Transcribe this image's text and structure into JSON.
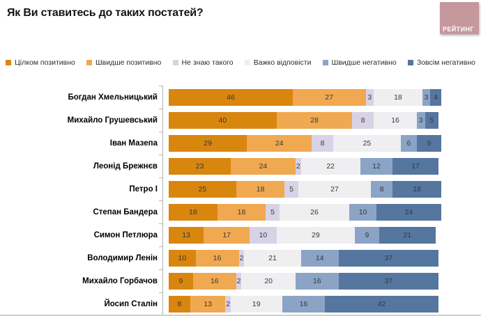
{
  "page": {
    "title": "Як Ви ставитесь до таких постатей?",
    "logo_text": "РЕЙТИНГ",
    "logo_color": "#c5989d",
    "axis_color": "#b3b3b3"
  },
  "legend": {
    "items": [
      {
        "label": "Цілком позитивно",
        "color": "#d9860f"
      },
      {
        "label": "Швидше позитивно",
        "color": "#f0a950"
      },
      {
        "label": "Не знаю такого",
        "color": "#d8d2e7"
      },
      {
        "label": "Важко відповісти",
        "color": "#efeff1"
      },
      {
        "label": "Швидше негативно",
        "color": "#8ba4c6"
      },
      {
        "label": "Зовсім негативно",
        "color": "#55769f"
      }
    ]
  },
  "chart_data": {
    "type": "bar",
    "orientation": "horizontal-stacked",
    "title": "Як Ви ставитесь до таких постатей?",
    "unit": "percent",
    "xlim": [
      0,
      101
    ],
    "value_labels": true,
    "legend_position": "top",
    "grid": false,
    "categories": [
      "Богдан Хмельницький",
      "Михайло Грушевський",
      "Іван Мазепа",
      "Леонід Брежнєв",
      "Петро І",
      "Степан Бандера",
      "Симон Петлюра",
      "Володимир Ленін",
      "Михайло Горбачов",
      "Йосип Сталін"
    ],
    "series": [
      {
        "name": "Цілком позитивно",
        "color": "#d9860f",
        "values": [
          46,
          40,
          29,
          23,
          25,
          18,
          13,
          10,
          9,
          8
        ]
      },
      {
        "name": "Швидше позитивно",
        "color": "#f0a950",
        "values": [
          27,
          28,
          24,
          24,
          18,
          18,
          17,
          16,
          16,
          13
        ]
      },
      {
        "name": "Не знаю такого",
        "color": "#d8d2e7",
        "values": [
          3,
          8,
          8,
          2,
          5,
          5,
          10,
          2,
          2,
          2
        ]
      },
      {
        "name": "Важко відповісти",
        "color": "#efeff1",
        "values": [
          18,
          16,
          25,
          22,
          27,
          26,
          29,
          21,
          20,
          19
        ]
      },
      {
        "name": "Швидше негативно",
        "color": "#8ba4c6",
        "values": [
          3,
          3,
          6,
          12,
          8,
          10,
          9,
          14,
          16,
          16
        ]
      },
      {
        "name": "Зовсім негативно",
        "color": "#55769f",
        "values": [
          4,
          5,
          9,
          17,
          18,
          24,
          21,
          37,
          37,
          42
        ]
      }
    ]
  }
}
